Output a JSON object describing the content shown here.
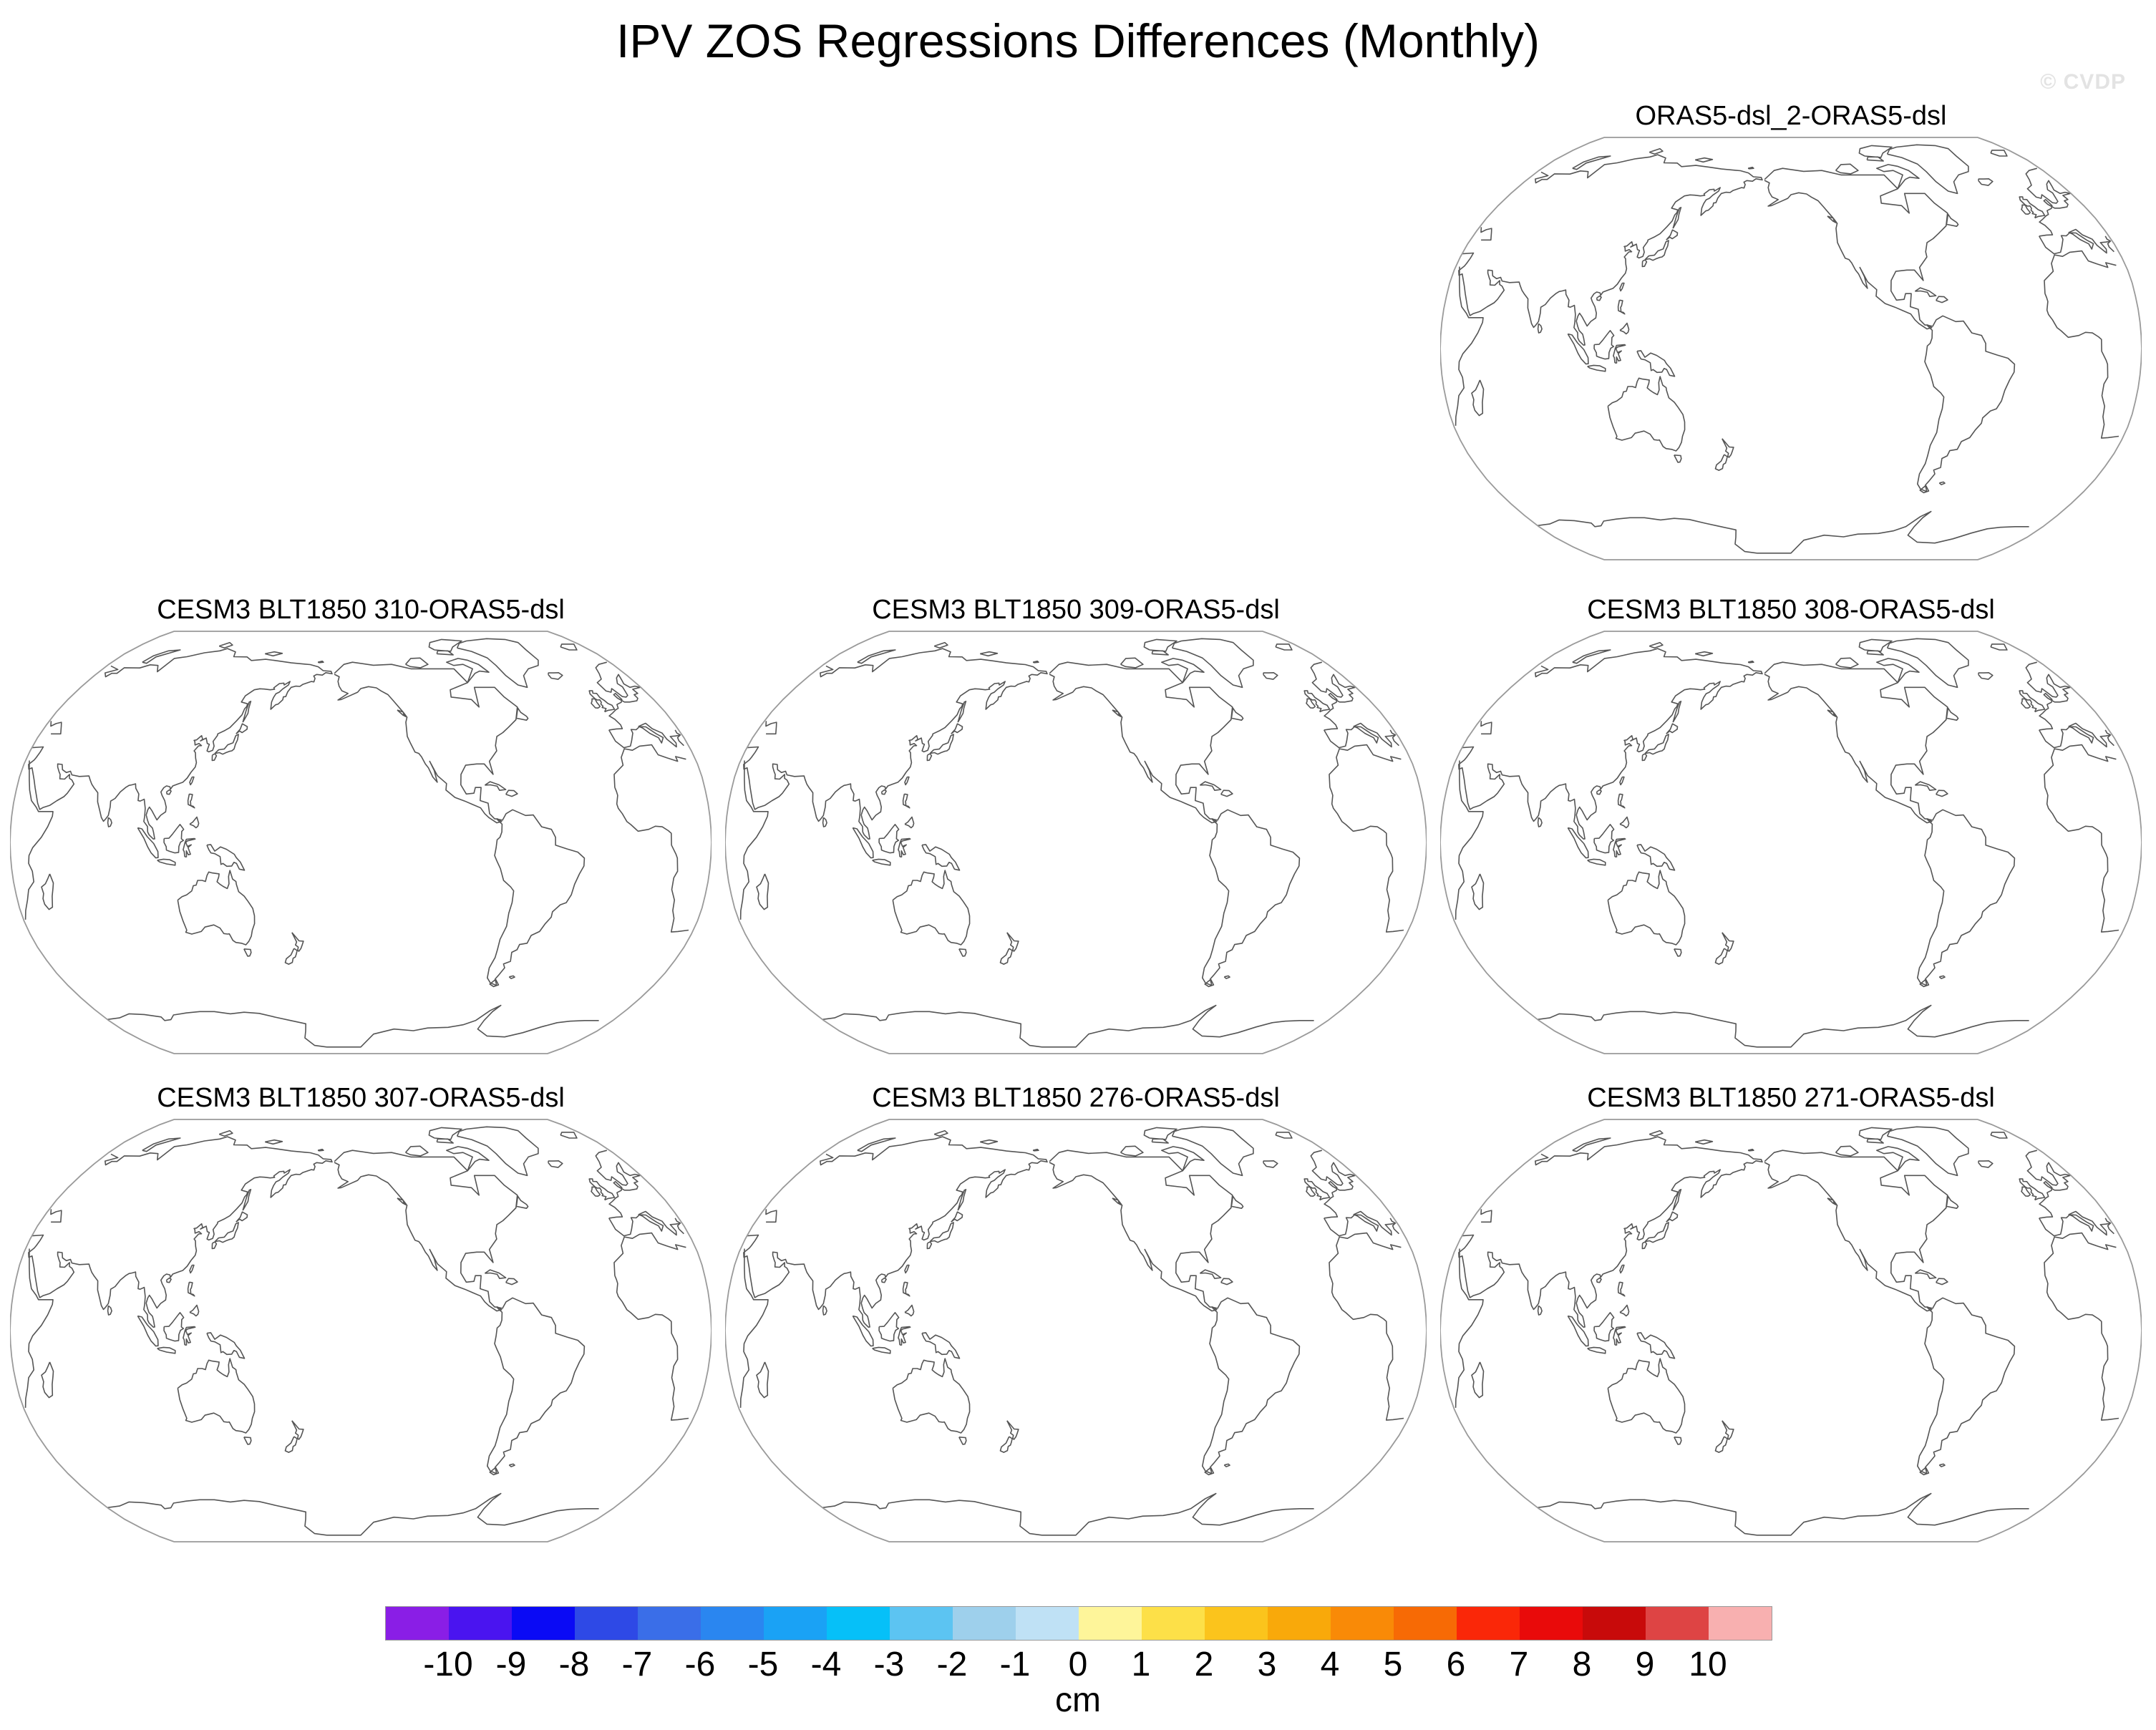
{
  "title": "IPV ZOS Regressions Differences (Monthly)",
  "watermark": "© CVDP",
  "panels": [
    {
      "label": "ORAS5-dsl_2-ORAS5-dsl"
    },
    {
      "label": "CESM3 BLT1850 310-ORAS5-dsl"
    },
    {
      "label": "CESM3 BLT1850 309-ORAS5-dsl"
    },
    {
      "label": "CESM3 BLT1850 308-ORAS5-dsl"
    },
    {
      "label": "CESM3 BLT1850 307-ORAS5-dsl"
    },
    {
      "label": "CESM3 BLT1850 276-ORAS5-dsl"
    },
    {
      "label": "CESM3 BLT1850 271-ORAS5-dsl"
    }
  ],
  "map": {
    "projection": "Robinson",
    "central_longitude": 210,
    "fill": "none (no shaded data)",
    "coastline_color": "#555555"
  },
  "colorbar": {
    "units": "cm",
    "tick_labels": [
      "-10",
      "-9",
      "-8",
      "-7",
      "-6",
      "-5",
      "-4",
      "-3",
      "-2",
      "-1",
      "0",
      "1",
      "2",
      "3",
      "4",
      "5",
      "6",
      "7",
      "8",
      "9",
      "10"
    ],
    "colors": [
      "#8a1ee6",
      "#4a14f0",
      "#0a0af5",
      "#2e49e6",
      "#3a6ee8",
      "#2a86f0",
      "#1aa2f5",
      "#06c0f8",
      "#5cc4f2",
      "#9ed0ec",
      "#bfe1f5",
      "#fef59a",
      "#fde048",
      "#fbc41c",
      "#f9a90a",
      "#f98a07",
      "#f76a05",
      "#fa2708",
      "#e90a0a",
      "#c80a0a",
      "#de4444",
      "#f8b0b0"
    ]
  }
}
